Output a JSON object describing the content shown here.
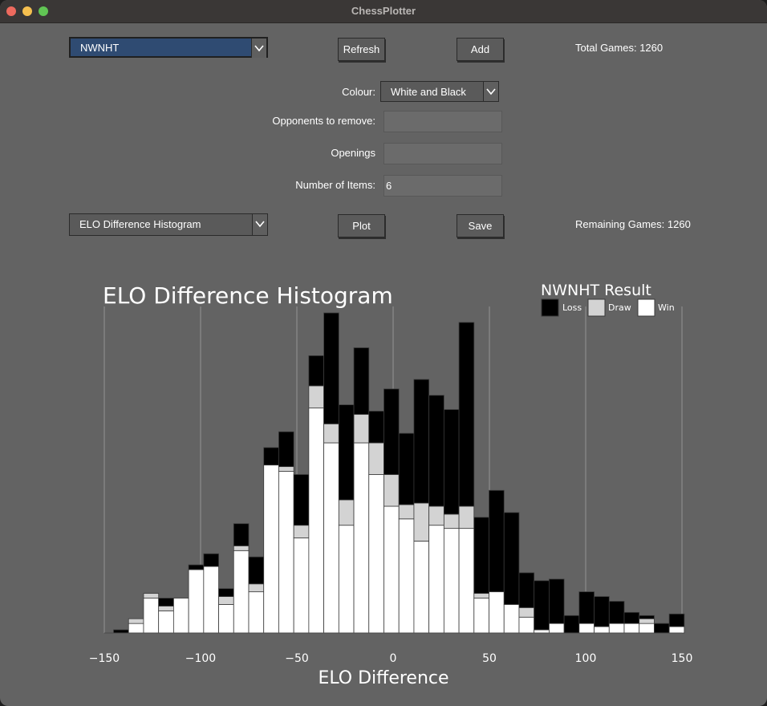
{
  "app": {
    "title": "ChessPlotter"
  },
  "controls": {
    "player_select": "NWNHT",
    "refresh_label": "Refresh",
    "add_label": "Add",
    "total_games": "Total Games: 1260",
    "colour_label": "Colour:",
    "colour_value": "White and Black",
    "opponents_label": "Opponents to remove:",
    "opponents_value": "",
    "openings_label": "Openings",
    "openings_value": "",
    "items_label": "Number of Items:",
    "items_value": "6",
    "plot_select": "ELO Difference Histogram",
    "plot_label": "Plot",
    "save_label": "Save",
    "remaining_games": "Remaining Games: 1260"
  },
  "colors": {
    "loss": "#000000",
    "draw": "#d3d3d3",
    "win": "#ffffff",
    "background": "#636363"
  },
  "chart_data": {
    "type": "bar",
    "stacked": true,
    "title": "ELO Difference Histogram",
    "xlabel": "ELO Difference",
    "ylabel": "",
    "xlim": [
      -150,
      150
    ],
    "ylim": [
      0,
      100
    ],
    "bin_width": 7.8,
    "xticks": [
      -150,
      -100,
      -50,
      0,
      50,
      100,
      150
    ],
    "xtick_labels": [
      "−150",
      "−100",
      "−50",
      "0",
      "50",
      "100",
      "150"
    ],
    "legend": {
      "title": "NWNHT Result",
      "position": "top-right"
    },
    "bin_centers": [
      -141.3,
      -133.5,
      -125.7,
      -117.9,
      -110.1,
      -102.3,
      -94.5,
      -86.7,
      -78.9,
      -71.1,
      -63.3,
      -55.5,
      -47.7,
      -39.9,
      -32.1,
      -24.3,
      -16.5,
      -8.7,
      -0.9,
      6.9,
      14.7,
      22.5,
      30.3,
      38.1,
      45.9,
      53.7,
      61.5,
      69.3,
      77.1,
      84.9,
      92.7,
      100.5,
      108.3,
      116.1,
      123.9,
      131.7,
      139.5,
      147.3
    ],
    "series": [
      {
        "name": "Win",
        "values": [
          0,
          3,
          11,
          7,
          11,
          20,
          21,
          9,
          26,
          13,
          53,
          51,
          30,
          71,
          60,
          34,
          60,
          50,
          40,
          36,
          29,
          34,
          33,
          33,
          11,
          13,
          9,
          5,
          1,
          3,
          0,
          3,
          2,
          3,
          3,
          3,
          0,
          2
        ]
      },
      {
        "name": "Draw",
        "values": [
          0,
          1.5,
          1.5,
          1.5,
          0,
          0,
          0,
          2.5,
          1.5,
          2.5,
          0,
          1.5,
          4,
          7,
          6,
          8,
          9,
          10,
          10,
          4.5,
          12,
          6,
          4.5,
          7,
          1.5,
          0,
          0,
          3,
          0,
          0,
          0,
          0,
          0,
          0,
          0,
          1.5,
          0,
          0
        ]
      },
      {
        "name": "Loss",
        "values": [
          1,
          0,
          0,
          2.5,
          0,
          1.5,
          4,
          2.5,
          7,
          8.5,
          5.5,
          11,
          16,
          9.5,
          35,
          30,
          21,
          10,
          27,
          22.5,
          39,
          35,
          33,
          58,
          24,
          32,
          29,
          11,
          15.5,
          14,
          5.5,
          10,
          9.5,
          7,
          3.5,
          1,
          3,
          4
        ]
      }
    ]
  }
}
